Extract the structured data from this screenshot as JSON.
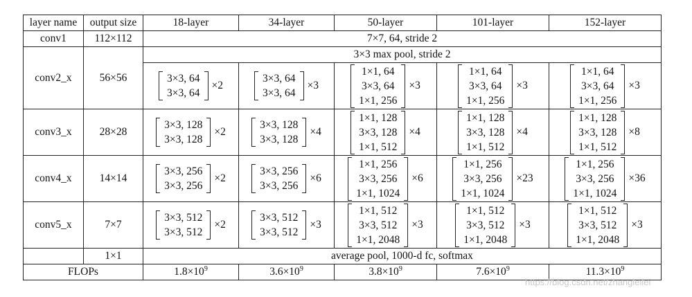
{
  "header": [
    "layer name",
    "output size",
    "18-layer",
    "34-layer",
    "50-layer",
    "101-layer",
    "152-layer"
  ],
  "conv1": {
    "name": "conv1",
    "size": "112×112",
    "spec": "7×7, 64, stride 2"
  },
  "pool": {
    "spec": "3×3 max pool, stride 2"
  },
  "stages": [
    {
      "name": "conv2_x",
      "size": "56×56",
      "cells": [
        {
          "lines": [
            "3×3, 64",
            "3×3, 64"
          ],
          "mult": "×2"
        },
        {
          "lines": [
            "3×3, 64",
            "3×3, 64"
          ],
          "mult": "×3"
        },
        {
          "lines": [
            "1×1, 64",
            "3×3, 64",
            "1×1, 256"
          ],
          "mult": "×3"
        },
        {
          "lines": [
            "1×1, 64",
            "3×3, 64",
            "1×1, 256"
          ],
          "mult": "×3"
        },
        {
          "lines": [
            "1×1, 64",
            "3×3, 64",
            "1×1, 256"
          ],
          "mult": "×3"
        }
      ]
    },
    {
      "name": "conv3_x",
      "size": "28×28",
      "cells": [
        {
          "lines": [
            "3×3, 128",
            "3×3, 128"
          ],
          "mult": "×2"
        },
        {
          "lines": [
            "3×3, 128",
            "3×3, 128"
          ],
          "mult": "×4"
        },
        {
          "lines": [
            "1×1, 128",
            "3×3, 128",
            "1×1, 512"
          ],
          "mult": "×4"
        },
        {
          "lines": [
            "1×1, 128",
            "3×3, 128",
            "1×1, 512"
          ],
          "mult": "×4"
        },
        {
          "lines": [
            "1×1, 128",
            "3×3, 128",
            "1×1, 512"
          ],
          "mult": "×8"
        }
      ]
    },
    {
      "name": "conv4_x",
      "size": "14×14",
      "cells": [
        {
          "lines": [
            "3×3, 256",
            "3×3, 256"
          ],
          "mult": "×2"
        },
        {
          "lines": [
            "3×3, 256",
            "3×3, 256"
          ],
          "mult": "×6"
        },
        {
          "lines": [
            "1×1, 256",
            "3×3, 256",
            "1×1, 1024"
          ],
          "mult": "×6"
        },
        {
          "lines": [
            "1×1, 256",
            "3×3, 256",
            "1×1, 1024"
          ],
          "mult": "×23"
        },
        {
          "lines": [
            "1×1, 256",
            "3×3, 256",
            "1×1, 1024"
          ],
          "mult": "×36"
        }
      ]
    },
    {
      "name": "conv5_x",
      "size": "7×7",
      "cells": [
        {
          "lines": [
            "3×3, 512",
            "3×3, 512"
          ],
          "mult": "×2"
        },
        {
          "lines": [
            "3×3, 512",
            "3×3, 512"
          ],
          "mult": "×3"
        },
        {
          "lines": [
            "1×1, 512",
            "3×3, 512",
            "1×1, 2048"
          ],
          "mult": "×3"
        },
        {
          "lines": [
            "1×1, 512",
            "3×3, 512",
            "1×1, 2048"
          ],
          "mult": "×3"
        },
        {
          "lines": [
            "1×1, 512",
            "3×3, 512",
            "1×1, 2048"
          ],
          "mult": "×3"
        }
      ]
    }
  ],
  "final": {
    "size": "1×1",
    "spec": "average pool, 1000-d fc, softmax"
  },
  "flops": {
    "label": "FLOPs",
    "base": "×10",
    "exp": "9",
    "values": [
      "1.8",
      "3.6",
      "3.8",
      "7.6",
      "11.3"
    ]
  },
  "watermark": "https://blog.csdn.net/zhangleilei"
}
